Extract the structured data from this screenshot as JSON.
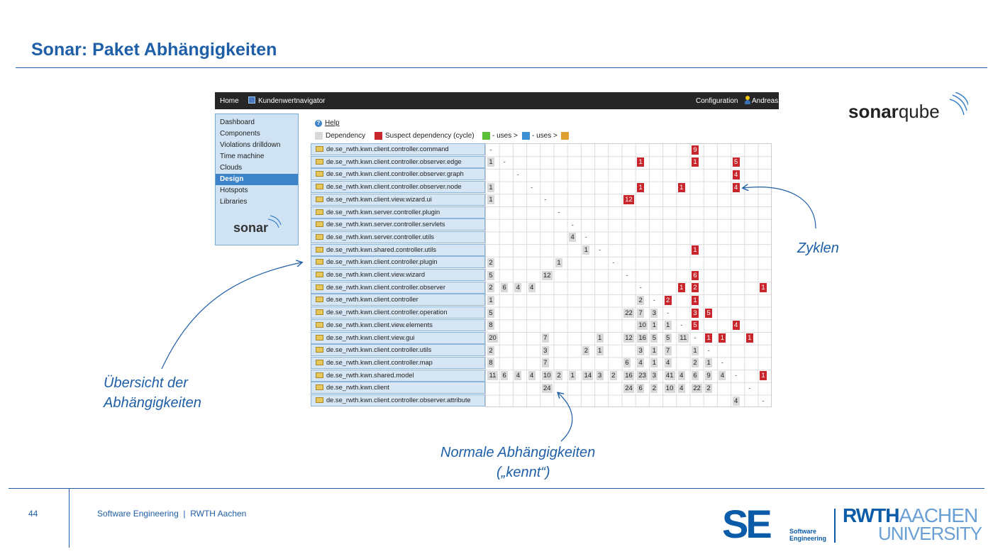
{
  "slide": {
    "title": "Sonar: Paket Abhängigkeiten",
    "page_number": "44",
    "footer": "Software Engineering  |  RWTH Aachen"
  },
  "app": {
    "topbar": {
      "home": "Home",
      "project": "Kundenwertnavigator",
      "configuration": "Configuration",
      "user": "Andreas"
    },
    "sidebar": {
      "items": [
        {
          "label": "Dashboard",
          "active": false
        },
        {
          "label": "Components",
          "active": false
        },
        {
          "label": "Violations drilldown",
          "active": false
        },
        {
          "label": "Time machine",
          "active": false
        },
        {
          "label": "Clouds",
          "active": false
        },
        {
          "label": "Design",
          "active": true
        },
        {
          "label": "Hotspots",
          "active": false
        },
        {
          "label": "Libraries",
          "active": false
        }
      ],
      "logo": "sonar"
    },
    "help": "Help",
    "legend": {
      "dependency": "Dependency",
      "suspect": "Suspect dependency (cycle)",
      "uses1": "- uses >",
      "uses2": "- uses >",
      "colors": {
        "dependency": "#d9d9d9",
        "suspect": "#c8262c",
        "green": "#5cbf3a",
        "blue": "#3c8fd1",
        "orange": "#e0a030"
      }
    },
    "packages": [
      "de.se_rwth.kwn.client.controller.command",
      "de.se_rwth.kwn.client.controller.observer.edge",
      "de.se_rwth.kwn.client.controller.observer.graph",
      "de.se_rwth.kwn.client.controller.observer.node",
      "de.se_rwth.kwn.client.view.wizard.ui",
      "de.se_rwth.kwn.server.controller.plugin",
      "de.se_rwth.kwn.server.controller.servlets",
      "de.se_rwth.kwn.server.controller.utils",
      "de.se_rwth.kwn.shared.controller.utils",
      "de.se_rwth.kwn.client.controller.plugin",
      "de.se_rwth.kwn.client.view.wizard",
      "de.se_rwth.kwn.client.controller.observer",
      "de.se_rwth.kwn.client.controller",
      "de.se_rwth.kwn.client.controller.operation",
      "de.se_rwth.kwn.client.view.elements",
      "de.se_rwth.kwn.client.view.gui",
      "de.se_rwth.kwn.client.controller.utils",
      "de.se_rwth.kwn.client.controller.map",
      "de.se_rwth.kwn.shared.model",
      "de.se_rwth.kwn.client",
      "de.se_rwth.kwn.client.controller.observer.attribute"
    ],
    "cells": [
      [
        0,
        0,
        "-",
        "d"
      ],
      [
        0,
        15,
        "9",
        "c"
      ],
      [
        1,
        0,
        "1",
        "n"
      ],
      [
        1,
        1,
        "-",
        "d"
      ],
      [
        1,
        11,
        "1",
        "c"
      ],
      [
        1,
        15,
        "1",
        "c"
      ],
      [
        1,
        18,
        "5",
        "c"
      ],
      [
        2,
        2,
        "-",
        "d"
      ],
      [
        2,
        18,
        "4",
        "c"
      ],
      [
        3,
        0,
        "1",
        "n"
      ],
      [
        3,
        3,
        "-",
        "d"
      ],
      [
        3,
        11,
        "1",
        "c"
      ],
      [
        3,
        14,
        "1",
        "c"
      ],
      [
        3,
        18,
        "4",
        "c"
      ],
      [
        4,
        0,
        "1",
        "n"
      ],
      [
        4,
        4,
        "-",
        "d"
      ],
      [
        4,
        10,
        "12",
        "c"
      ],
      [
        5,
        5,
        "-",
        "d"
      ],
      [
        6,
        6,
        "-",
        "d"
      ],
      [
        7,
        6,
        "4",
        "n"
      ],
      [
        7,
        7,
        "-",
        "d"
      ],
      [
        8,
        7,
        "1",
        "n"
      ],
      [
        8,
        8,
        "-",
        "d"
      ],
      [
        8,
        15,
        "1",
        "c"
      ],
      [
        9,
        0,
        "2",
        "n"
      ],
      [
        9,
        5,
        "1",
        "n"
      ],
      [
        9,
        9,
        "-",
        "d"
      ],
      [
        10,
        0,
        "5",
        "n"
      ],
      [
        10,
        4,
        "12",
        "n"
      ],
      [
        10,
        10,
        "-",
        "d"
      ],
      [
        10,
        15,
        "6",
        "c"
      ],
      [
        11,
        0,
        "2",
        "n"
      ],
      [
        11,
        1,
        "6",
        "n"
      ],
      [
        11,
        2,
        "4",
        "n"
      ],
      [
        11,
        3,
        "4",
        "n"
      ],
      [
        11,
        11,
        "-",
        "d"
      ],
      [
        11,
        14,
        "1",
        "c"
      ],
      [
        11,
        15,
        "2",
        "c"
      ],
      [
        11,
        20,
        "1",
        "c"
      ],
      [
        12,
        0,
        "1",
        "n"
      ],
      [
        12,
        11,
        "2",
        "n"
      ],
      [
        12,
        12,
        "-",
        "d"
      ],
      [
        12,
        13,
        "2",
        "c"
      ],
      [
        12,
        15,
        "1",
        "c"
      ],
      [
        13,
        0,
        "5",
        "n"
      ],
      [
        13,
        10,
        "22",
        "n"
      ],
      [
        13,
        11,
        "7",
        "n"
      ],
      [
        13,
        12,
        "3",
        "n"
      ],
      [
        13,
        13,
        "-",
        "d"
      ],
      [
        13,
        15,
        "3",
        "c"
      ],
      [
        13,
        16,
        "5",
        "c"
      ],
      [
        14,
        0,
        "8",
        "n"
      ],
      [
        14,
        11,
        "10",
        "n"
      ],
      [
        14,
        12,
        "1",
        "n"
      ],
      [
        14,
        13,
        "1",
        "n"
      ],
      [
        14,
        14,
        "-",
        "d"
      ],
      [
        14,
        15,
        "5",
        "c"
      ],
      [
        14,
        18,
        "4",
        "c"
      ],
      [
        15,
        0,
        "20",
        "n"
      ],
      [
        15,
        4,
        "7",
        "n"
      ],
      [
        15,
        8,
        "1",
        "n"
      ],
      [
        15,
        10,
        "12",
        "n"
      ],
      [
        15,
        11,
        "16",
        "n"
      ],
      [
        15,
        12,
        "5",
        "n"
      ],
      [
        15,
        13,
        "5",
        "n"
      ],
      [
        15,
        14,
        "11",
        "n"
      ],
      [
        15,
        15,
        "-",
        "d"
      ],
      [
        15,
        16,
        "1",
        "c"
      ],
      [
        15,
        17,
        "1",
        "c"
      ],
      [
        15,
        19,
        "1",
        "c"
      ],
      [
        16,
        0,
        "2",
        "n"
      ],
      [
        16,
        4,
        "3",
        "n"
      ],
      [
        16,
        7,
        "2",
        "n"
      ],
      [
        16,
        8,
        "1",
        "n"
      ],
      [
        16,
        11,
        "3",
        "n"
      ],
      [
        16,
        12,
        "1",
        "n"
      ],
      [
        16,
        13,
        "7",
        "n"
      ],
      [
        16,
        15,
        "1",
        "n"
      ],
      [
        16,
        16,
        "-",
        "d"
      ],
      [
        17,
        0,
        "8",
        "n"
      ],
      [
        17,
        4,
        "7",
        "n"
      ],
      [
        17,
        10,
        "6",
        "n"
      ],
      [
        17,
        11,
        "4",
        "n"
      ],
      [
        17,
        12,
        "1",
        "n"
      ],
      [
        17,
        13,
        "4",
        "n"
      ],
      [
        17,
        15,
        "2",
        "n"
      ],
      [
        17,
        16,
        "1",
        "n"
      ],
      [
        17,
        17,
        "-",
        "d"
      ],
      [
        18,
        0,
        "11",
        "n"
      ],
      [
        18,
        1,
        "6",
        "n"
      ],
      [
        18,
        2,
        "4",
        "n"
      ],
      [
        18,
        3,
        "4",
        "n"
      ],
      [
        18,
        4,
        "10",
        "n"
      ],
      [
        18,
        5,
        "2",
        "n"
      ],
      [
        18,
        6,
        "1",
        "n"
      ],
      [
        18,
        7,
        "14",
        "n"
      ],
      [
        18,
        8,
        "3",
        "n"
      ],
      [
        18,
        9,
        "2",
        "n"
      ],
      [
        18,
        10,
        "16",
        "n"
      ],
      [
        18,
        11,
        "23",
        "n"
      ],
      [
        18,
        12,
        "3",
        "n"
      ],
      [
        18,
        13,
        "41",
        "n"
      ],
      [
        18,
        14,
        "4",
        "n"
      ],
      [
        18,
        15,
        "6",
        "n"
      ],
      [
        18,
        16,
        "9",
        "n"
      ],
      [
        18,
        17,
        "4",
        "n"
      ],
      [
        18,
        18,
        "-",
        "d"
      ],
      [
        18,
        20,
        "1",
        "c"
      ],
      [
        19,
        4,
        "24",
        "n"
      ],
      [
        19,
        10,
        "24",
        "n"
      ],
      [
        19,
        11,
        "6",
        "n"
      ],
      [
        19,
        12,
        "2",
        "n"
      ],
      [
        19,
        13,
        "10",
        "n"
      ],
      [
        19,
        14,
        "4",
        "n"
      ],
      [
        19,
        15,
        "22",
        "n"
      ],
      [
        19,
        16,
        "2",
        "n"
      ],
      [
        19,
        19,
        "-",
        "d"
      ],
      [
        20,
        18,
        "4",
        "n"
      ],
      [
        20,
        20,
        "-",
        "d"
      ]
    ]
  },
  "annotations": {
    "zyklen": "Zyklen",
    "uebersicht_1": "Übersicht der",
    "uebersicht_2": "Abhängigkeiten",
    "normale_1": "Normale Abhängigkeiten",
    "normale_2": "(„kennt“)"
  },
  "logos": {
    "sonarqube_bold": "sonar",
    "sonarqube_light": "qube",
    "se": "SE",
    "se_sub_1": "Software",
    "se_sub_2": "Engineering",
    "rwth_bold": "RWTH",
    "rwth_light": "AACHEN",
    "rwth_2": "UNIVERSITY"
  }
}
